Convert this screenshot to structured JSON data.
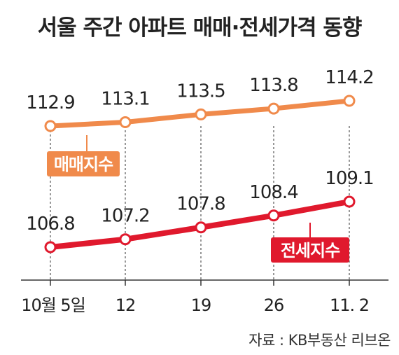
{
  "title": "서울 주간 아파트 매매·전세가격 동향",
  "source": "자료 : KB부동산 리브온",
  "colors": {
    "sale": "#f08a4b",
    "jeonse": "#e0192d",
    "text": "#222222",
    "guide": "#555555",
    "axis": "#333333"
  },
  "chart_data": {
    "type": "line",
    "categories": [
      "10월 5일",
      "12",
      "19",
      "26",
      "11. 2"
    ],
    "series": [
      {
        "name": "매매지수",
        "values": [
          112.9,
          113.1,
          113.5,
          113.8,
          114.2
        ],
        "color": "#f08a4b"
      },
      {
        "name": "전세지수",
        "values": [
          106.8,
          107.2,
          107.8,
          108.4,
          109.1
        ],
        "color": "#e0192d"
      }
    ],
    "data_labels": {
      "매매지수": [
        "112.9",
        "113.1",
        "113.5",
        "113.8",
        "114.2"
      ],
      "전세지수": [
        "106.8",
        "107.2",
        "107.8",
        "108.4",
        "109.1"
      ]
    },
    "grid": false,
    "legend": "labels on lines"
  }
}
